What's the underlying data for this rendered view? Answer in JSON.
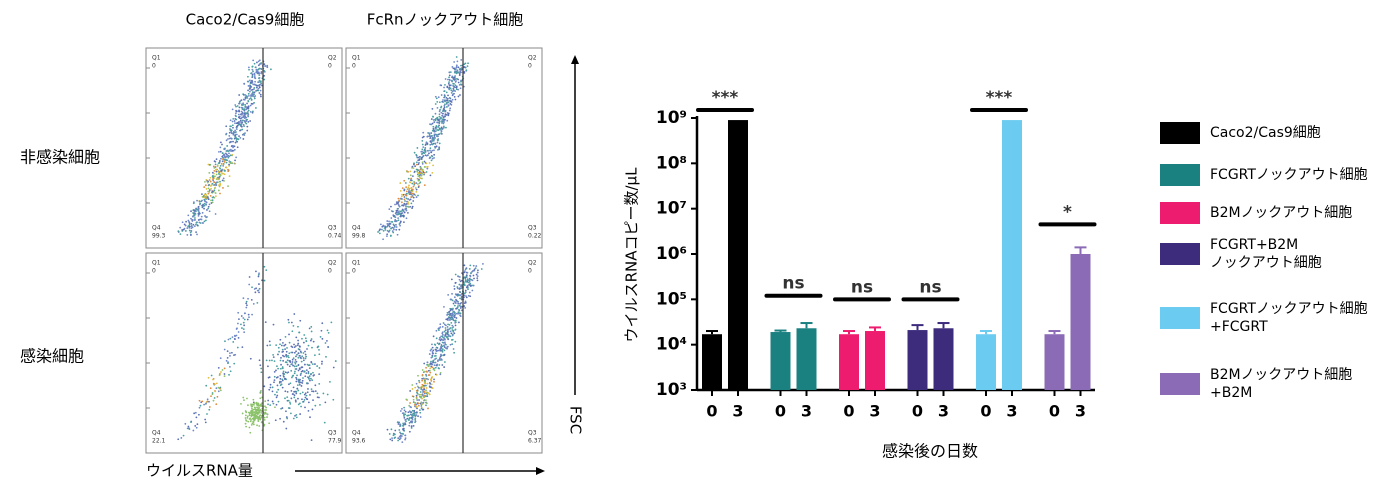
{
  "flow_cytometry": {
    "columns": [
      "Caco2/Cas9細胞",
      "FcRnノックアウト細胞"
    ],
    "rows": [
      "非感染細胞",
      "感染細胞"
    ],
    "x_label": "ウイルスRNA量",
    "y_label": "FSC",
    "quadrant_names": [
      "Q1",
      "Q2",
      "Q3",
      "Q4"
    ],
    "panels": [
      {
        "quadrants": [
          0,
          0,
          0.74,
          99.3
        ]
      },
      {
        "quadrants": [
          0,
          0,
          0.22,
          99.8
        ]
      },
      {
        "quadrants": [
          0,
          0,
          77.9,
          22.1
        ]
      },
      {
        "quadrants": [
          0,
          0,
          6.37,
          93.6
        ]
      }
    ]
  },
  "chart_data": {
    "type": "bar",
    "y_label": "ウイルスRNAコピー数/μL",
    "x_label": "感染後の日数",
    "categories": [
      "0",
      "3"
    ],
    "log_scale": true,
    "ylim": [
      1000,
      1000000000
    ],
    "yticks": [
      {
        "value": 1000,
        "label": "10³"
      },
      {
        "value": 10000,
        "label": "10⁴"
      },
      {
        "value": 100000,
        "label": "10⁵"
      },
      {
        "value": 1000000,
        "label": "10⁶"
      },
      {
        "value": 10000000,
        "label": "10⁷"
      },
      {
        "value": 100000000,
        "label": "10⁸"
      },
      {
        "value": 1000000000,
        "label": "10⁹"
      }
    ],
    "series": [
      {
        "name": "Caco2/Cas9細胞",
        "color": "#000000",
        "values": [
          17000,
          900000000
        ],
        "errors": [
          3000,
          0
        ],
        "significance": {
          "label": "***",
          "level": 1500000000
        }
      },
      {
        "name": "FCGRTノックアウト細胞",
        "color": "#1a8080",
        "values": [
          19000,
          23000
        ],
        "errors": [
          1500,
          7000
        ],
        "significance": {
          "label": "ns",
          "level": 120000
        }
      },
      {
        "name": "B2Mノックアウト細胞",
        "color": "#ee1c6e",
        "values": [
          17000,
          20000
        ],
        "errors": [
          3000,
          4000
        ],
        "significance": {
          "label": "ns",
          "level": 100000
        }
      },
      {
        "name": "FCGRT+B2M\nノックアウト細胞",
        "color": "#3d2b7c",
        "values": [
          21000,
          23000
        ],
        "errors": [
          6000,
          7000
        ],
        "significance": {
          "label": "ns",
          "level": 100000
        }
      },
      {
        "name": "FCGRTノックアウト細胞\n+FCGRT",
        "color": "#6ccbf0",
        "values": [
          17000,
          900000000
        ],
        "errors": [
          3000,
          0
        ],
        "significance": {
          "label": "***",
          "level": 1500000000
        }
      },
      {
        "name": "B2Mノックアウト細胞\n+B2M",
        "color": "#8c6bb6",
        "values": [
          17000,
          1000000
        ],
        "errors": [
          3000,
          400000
        ],
        "significance": {
          "label": "*",
          "level": 4500000
        }
      }
    ]
  }
}
